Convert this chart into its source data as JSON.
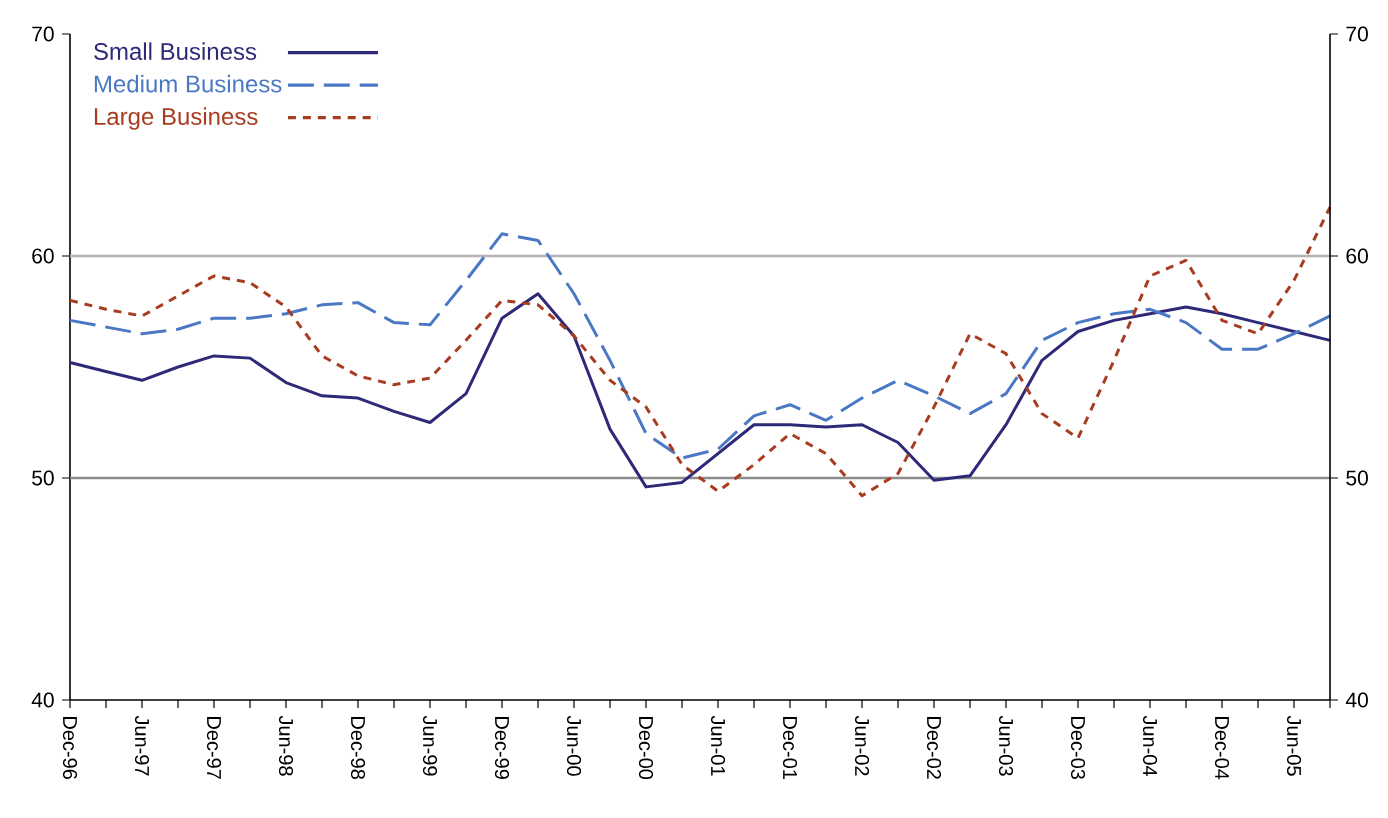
{
  "chart_data": {
    "type": "line",
    "categories": [
      "Dec-96",
      null,
      "Jun-97",
      null,
      "Dec-97",
      null,
      "Jun-98",
      null,
      "Dec-98",
      null,
      "Jun-99",
      null,
      "Dec-99",
      null,
      "Jun-00",
      null,
      "Dec-00",
      null,
      "Jun-01",
      null,
      "Dec-01",
      null,
      "Jun-02",
      null,
      "Dec-02",
      null,
      "Jun-03",
      null,
      "Dec-03",
      null,
      "Jun-04",
      null,
      "Dec-04",
      null,
      "Jun-05",
      null
    ],
    "series": [
      {
        "name": "Small Business",
        "color": "#2e2a78",
        "line_style": "solid",
        "values": [
          55.2,
          54.8,
          54.4,
          55.0,
          55.5,
          55.4,
          54.3,
          53.7,
          53.6,
          53.0,
          52.5,
          53.8,
          57.2,
          58.3,
          56.4,
          52.2,
          49.6,
          49.8,
          51.1,
          52.4,
          52.4,
          52.3,
          52.4,
          51.6,
          49.9,
          50.1,
          52.4,
          55.3,
          56.6,
          57.1,
          57.4,
          57.7,
          57.4,
          57.0,
          56.6,
          56.2
        ]
      },
      {
        "name": "Medium Business",
        "color": "#4a78c4",
        "line_style": "dashed",
        "values": [
          57.1,
          56.8,
          56.5,
          56.7,
          57.2,
          57.2,
          57.4,
          57.8,
          57.9,
          57.0,
          56.9,
          58.9,
          61.0,
          60.7,
          58.3,
          55.3,
          52.0,
          50.9,
          51.3,
          52.8,
          53.3,
          52.6,
          53.6,
          54.4,
          53.7,
          52.9,
          53.8,
          56.2,
          57.0,
          57.4,
          57.6,
          57.0,
          55.8,
          55.8,
          56.5,
          57.3
        ]
      },
      {
        "name": "Large Business",
        "color": "#a83c20",
        "line_style": "dotted",
        "values": [
          58.0,
          57.6,
          57.3,
          58.2,
          59.1,
          58.8,
          57.7,
          55.5,
          54.6,
          54.2,
          54.5,
          56.2,
          58.0,
          57.8,
          56.4,
          54.4,
          53.2,
          50.6,
          49.4,
          50.6,
          52.0,
          51.1,
          49.2,
          50.2,
          53.2,
          56.5,
          55.6,
          52.9,
          51.8,
          55.3,
          59.1,
          59.8,
          57.1,
          56.5,
          58.9,
          62.2
        ]
      }
    ],
    "ylim": [
      40,
      70
    ],
    "yticks": [
      40,
      50,
      60,
      70
    ],
    "y2lim": [
      40,
      70
    ],
    "y2ticks": [
      40,
      50,
      60,
      70
    ],
    "ref_lines": [
      {
        "axis": "y",
        "value": 60,
        "color": "#b4b4b4"
      },
      {
        "axis": "y",
        "value": 50,
        "color": "#8c8c8c"
      }
    ],
    "legend": "top left"
  }
}
